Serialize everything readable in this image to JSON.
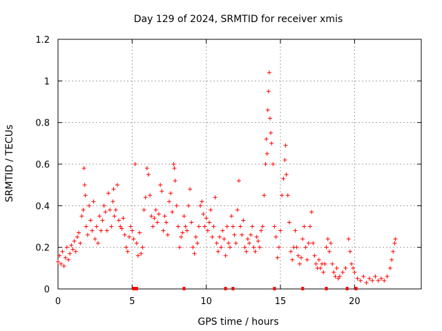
{
  "chart_data": {
    "type": "scatter",
    "title": "Day 129 of 2024, SRMTID for receiver xmis",
    "xlabel": "GPS time / hours",
    "ylabel": "SRMTID / TECUs",
    "xlim": [
      0,
      24.5
    ],
    "ylim": [
      0,
      1.2
    ],
    "xticks": [
      0,
      5,
      10,
      15,
      20
    ],
    "yticks": [
      0,
      0.2,
      0.4,
      0.6,
      0.8,
      1,
      1.2
    ],
    "xtick_labels": [
      "0",
      "5",
      "10",
      "15",
      "20"
    ],
    "ytick_labels": [
      "0",
      "0.2",
      "0.4",
      "0.6",
      "0.8",
      "1",
      "1.2"
    ],
    "grid": true,
    "marker": "+",
    "series_color": "#ff0000",
    "series": [
      {
        "name": "SRMTID",
        "points": [
          [
            0.0,
            0.13
          ],
          [
            0.1,
            0.16
          ],
          [
            0.2,
            0.12
          ],
          [
            0.3,
            0.18
          ],
          [
            0.4,
            0.11
          ],
          [
            0.5,
            0.15
          ],
          [
            0.6,
            0.2
          ],
          [
            0.7,
            0.14
          ],
          [
            0.8,
            0.17
          ],
          [
            0.9,
            0.21
          ],
          [
            1.0,
            0.19
          ],
          [
            1.1,
            0.23
          ],
          [
            1.2,
            0.18
          ],
          [
            1.3,
            0.25
          ],
          [
            1.4,
            0.27
          ],
          [
            1.5,
            0.22
          ],
          [
            1.6,
            0.35
          ],
          [
            1.7,
            0.38
          ],
          [
            1.75,
            0.58
          ],
          [
            1.8,
            0.5
          ],
          [
            1.85,
            0.45
          ],
          [
            1.9,
            0.3
          ],
          [
            2.0,
            0.26
          ],
          [
            2.1,
            0.4
          ],
          [
            2.2,
            0.33
          ],
          [
            2.3,
            0.28
          ],
          [
            2.4,
            0.42
          ],
          [
            2.5,
            0.24
          ],
          [
            2.6,
            0.3
          ],
          [
            2.7,
            0.22
          ],
          [
            2.8,
            0.35
          ],
          [
            2.9,
            0.28
          ],
          [
            3.0,
            0.33
          ],
          [
            3.1,
            0.4
          ],
          [
            3.2,
            0.37
          ],
          [
            3.3,
            0.28
          ],
          [
            3.4,
            0.46
          ],
          [
            3.5,
            0.38
          ],
          [
            3.6,
            0.3
          ],
          [
            3.7,
            0.42
          ],
          [
            3.75,
            0.48
          ],
          [
            3.8,
            0.35
          ],
          [
            3.9,
            0.38
          ],
          [
            4.0,
            0.5
          ],
          [
            4.1,
            0.33
          ],
          [
            4.2,
            0.3
          ],
          [
            4.3,
            0.29
          ],
          [
            4.4,
            0.34
          ],
          [
            4.5,
            0.26
          ],
          [
            4.6,
            0.2
          ],
          [
            4.7,
            0.18
          ],
          [
            4.8,
            0.25
          ],
          [
            4.9,
            0.3
          ],
          [
            5.0,
            0.28
          ],
          [
            5.1,
            0.24
          ],
          [
            5.2,
            0.6
          ],
          [
            5.3,
            0.22
          ],
          [
            5.4,
            0.16
          ],
          [
            5.5,
            0.27
          ],
          [
            5.6,
            0.17
          ],
          [
            5.7,
            0.2
          ],
          [
            5.8,
            0.38
          ],
          [
            5.9,
            0.44
          ],
          [
            6.0,
            0.58
          ],
          [
            6.1,
            0.55
          ],
          [
            6.2,
            0.45
          ],
          [
            6.3,
            0.35
          ],
          [
            6.4,
            0.3
          ],
          [
            6.5,
            0.34
          ],
          [
            6.6,
            0.38
          ],
          [
            6.7,
            0.32
          ],
          [
            6.8,
            0.36
          ],
          [
            6.9,
            0.5
          ],
          [
            7.0,
            0.47
          ],
          [
            7.1,
            0.28
          ],
          [
            7.2,
            0.35
          ],
          [
            7.3,
            0.32
          ],
          [
            7.4,
            0.26
          ],
          [
            7.5,
            0.42
          ],
          [
            7.6,
            0.46
          ],
          [
            7.7,
            0.37
          ],
          [
            7.8,
            0.6
          ],
          [
            7.85,
            0.58
          ],
          [
            7.9,
            0.52
          ],
          [
            8.0,
            0.4
          ],
          [
            8.1,
            0.3
          ],
          [
            8.2,
            0.2
          ],
          [
            8.3,
            0.25
          ],
          [
            8.4,
            0.27
          ],
          [
            8.5,
            0.35
          ],
          [
            8.6,
            0.3
          ],
          [
            8.7,
            0.28
          ],
          [
            8.8,
            0.4
          ],
          [
            8.9,
            0.48
          ],
          [
            9.0,
            0.32
          ],
          [
            9.1,
            0.2
          ],
          [
            9.2,
            0.17
          ],
          [
            9.3,
            0.25
          ],
          [
            9.4,
            0.22
          ],
          [
            9.5,
            0.3
          ],
          [
            9.6,
            0.4
          ],
          [
            9.7,
            0.42
          ],
          [
            9.8,
            0.36
          ],
          [
            9.9,
            0.3
          ],
          [
            10.0,
            0.34
          ],
          [
            10.1,
            0.28
          ],
          [
            10.2,
            0.32
          ],
          [
            10.3,
            0.38
          ],
          [
            10.4,
            0.25
          ],
          [
            10.5,
            0.3
          ],
          [
            10.6,
            0.44
          ],
          [
            10.7,
            0.22
          ],
          [
            10.8,
            0.18
          ],
          [
            10.9,
            0.25
          ],
          [
            11.0,
            0.2
          ],
          [
            11.1,
            0.28
          ],
          [
            11.2,
            0.24
          ],
          [
            11.3,
            0.16
          ],
          [
            11.4,
            0.3
          ],
          [
            11.5,
            0.22
          ],
          [
            11.6,
            0.2
          ],
          [
            11.7,
            0.35
          ],
          [
            11.8,
            0.3
          ],
          [
            11.9,
            0.26
          ],
          [
            12.0,
            0.22
          ],
          [
            12.1,
            0.38
          ],
          [
            12.2,
            0.52
          ],
          [
            12.3,
            0.3
          ],
          [
            12.4,
            0.26
          ],
          [
            12.5,
            0.33
          ],
          [
            12.6,
            0.2
          ],
          [
            12.7,
            0.18
          ],
          [
            12.8,
            0.24
          ],
          [
            12.9,
            0.22
          ],
          [
            13.0,
            0.26
          ],
          [
            13.1,
            0.3
          ],
          [
            13.2,
            0.2
          ],
          [
            13.3,
            0.18
          ],
          [
            13.4,
            0.25
          ],
          [
            13.5,
            0.23
          ],
          [
            13.6,
            0.2
          ],
          [
            13.7,
            0.28
          ],
          [
            13.8,
            0.3
          ],
          [
            13.9,
            0.45
          ],
          [
            14.0,
            0.6
          ],
          [
            14.05,
            0.72
          ],
          [
            14.1,
            0.65
          ],
          [
            14.15,
            0.86
          ],
          [
            14.2,
            0.95
          ],
          [
            14.25,
            1.04
          ],
          [
            14.3,
            0.82
          ],
          [
            14.35,
            0.75
          ],
          [
            14.4,
            0.7
          ],
          [
            14.5,
            0.6
          ],
          [
            14.6,
            0.3
          ],
          [
            14.7,
            0.25
          ],
          [
            14.8,
            0.15
          ],
          [
            14.9,
            0.2
          ],
          [
            15.0,
            0.28
          ],
          [
            15.1,
            0.45
          ],
          [
            15.2,
            0.53
          ],
          [
            15.3,
            0.62
          ],
          [
            15.35,
            0.69
          ],
          [
            15.4,
            0.55
          ],
          [
            15.5,
            0.45
          ],
          [
            15.6,
            0.32
          ],
          [
            15.7,
            0.18
          ],
          [
            15.8,
            0.14
          ],
          [
            15.9,
            0.2
          ],
          [
            16.0,
            0.28
          ],
          [
            16.1,
            0.2
          ],
          [
            16.2,
            0.16
          ],
          [
            16.3,
            0.12
          ],
          [
            16.4,
            0.15
          ],
          [
            16.5,
            0.24
          ],
          [
            16.6,
            0.3
          ],
          [
            16.7,
            0.2
          ],
          [
            16.8,
            0.14
          ],
          [
            16.9,
            0.22
          ],
          [
            17.0,
            0.3
          ],
          [
            17.1,
            0.37
          ],
          [
            17.2,
            0.22
          ],
          [
            17.3,
            0.16
          ],
          [
            17.4,
            0.12
          ],
          [
            17.5,
            0.1
          ],
          [
            17.6,
            0.14
          ],
          [
            17.7,
            0.1
          ],
          [
            17.8,
            0.12
          ],
          [
            17.9,
            0.08
          ],
          [
            18.0,
            0.12
          ],
          [
            18.1,
            0.2
          ],
          [
            18.2,
            0.24
          ],
          [
            18.3,
            0.18
          ],
          [
            18.4,
            0.22
          ],
          [
            18.5,
            0.12
          ],
          [
            18.6,
            0.08
          ],
          [
            18.7,
            0.06
          ],
          [
            18.8,
            0.1
          ],
          [
            18.9,
            0.05
          ],
          [
            19.0,
            0.06
          ],
          [
            19.2,
            0.08
          ],
          [
            19.4,
            0.1
          ],
          [
            19.6,
            0.24
          ],
          [
            19.7,
            0.18
          ],
          [
            19.8,
            0.12
          ],
          [
            19.9,
            0.1
          ],
          [
            20.0,
            0.08
          ],
          [
            20.2,
            0.05
          ],
          [
            20.4,
            0.04
          ],
          [
            20.6,
            0.06
          ],
          [
            20.8,
            0.03
          ],
          [
            21.0,
            0.05
          ],
          [
            21.2,
            0.04
          ],
          [
            21.4,
            0.06
          ],
          [
            21.6,
            0.04
          ],
          [
            21.8,
            0.05
          ],
          [
            22.0,
            0.04
          ],
          [
            22.2,
            0.06
          ],
          [
            22.4,
            0.1
          ],
          [
            22.5,
            0.14
          ],
          [
            22.6,
            0.18
          ],
          [
            22.7,
            0.22
          ],
          [
            22.75,
            0.24
          ]
        ]
      }
    ],
    "baseline_markers_x": [
      5.1,
      5.2,
      5.3,
      8.5,
      11.3,
      11.8,
      14.6,
      16.5,
      18.1,
      19.5,
      20.1
    ]
  }
}
